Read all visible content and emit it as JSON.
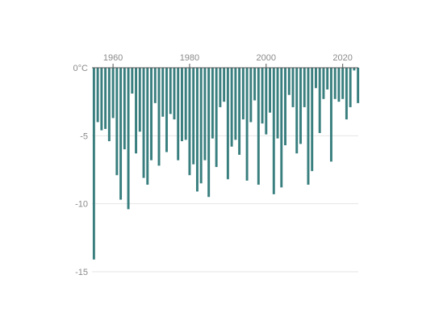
{
  "chart_data": {
    "type": "bar",
    "title": "",
    "xlabel": "",
    "ylabel": "",
    "x": [
      1955,
      1956,
      1957,
      1958,
      1959,
      1960,
      1961,
      1962,
      1963,
      1964,
      1965,
      1966,
      1967,
      1968,
      1969,
      1970,
      1971,
      1972,
      1973,
      1974,
      1975,
      1976,
      1977,
      1978,
      1979,
      1980,
      1981,
      1982,
      1983,
      1984,
      1985,
      1986,
      1987,
      1988,
      1989,
      1990,
      1991,
      1992,
      1993,
      1994,
      1995,
      1996,
      1997,
      1998,
      1999,
      2000,
      2001,
      2002,
      2003,
      2004,
      2005,
      2006,
      2007,
      2008,
      2009,
      2010,
      2011,
      2012,
      2013,
      2014,
      2015,
      2016,
      2017,
      2018,
      2019,
      2020,
      2021,
      2022,
      2023,
      2024
    ],
    "values": [
      -14.1,
      -4,
      -4.6,
      -4.5,
      -5.4,
      -3.7,
      -7.9,
      -9.7,
      -6,
      -10.4,
      -1.9,
      -6.3,
      -4.7,
      -8.1,
      -8.6,
      -6.8,
      -2.6,
      -7.2,
      -3.6,
      -6.2,
      -3.4,
      -3.8,
      -6.8,
      -5.4,
      -5.3,
      -7.9,
      -7.1,
      -9.1,
      -8.5,
      -6.8,
      -9.5,
      -5.2,
      -7.3,
      -2.9,
      -2.5,
      -8.2,
      -5.8,
      -5.3,
      -6.4,
      -3.8,
      -8.3,
      -4,
      -2.4,
      -8.6,
      -4.1,
      -4.9,
      -3.3,
      -9.3,
      -5.2,
      -8.8,
      -5.7,
      -2,
      -2.9,
      -6.3,
      -5.6,
      -2.9,
      -8.6,
      -7.6,
      -1.5,
      -4.8,
      -2.3,
      -1.6,
      -6.9,
      -2.3,
      -2.5,
      -2.3,
      -3.8,
      -2.9,
      -0.2,
      -2.6
    ],
    "ylim": [
      -15,
      0
    ],
    "xlim": [
      1954.5,
      2024.5
    ],
    "yticks": [
      0,
      -5,
      -10,
      -15
    ],
    "ytick_labels": [
      "0°C",
      "-5",
      "-10",
      "-15"
    ],
    "xticks": [
      1960,
      1980,
      2000,
      2020
    ],
    "xtick_labels": [
      "1960",
      "1980",
      "2000",
      "2020"
    ],
    "grid": true,
    "colors": {
      "bar": "#3a7f7f",
      "grid": "#e6e6e6",
      "baseline": "#555555",
      "tick_text": "#8a8a8a"
    }
  }
}
